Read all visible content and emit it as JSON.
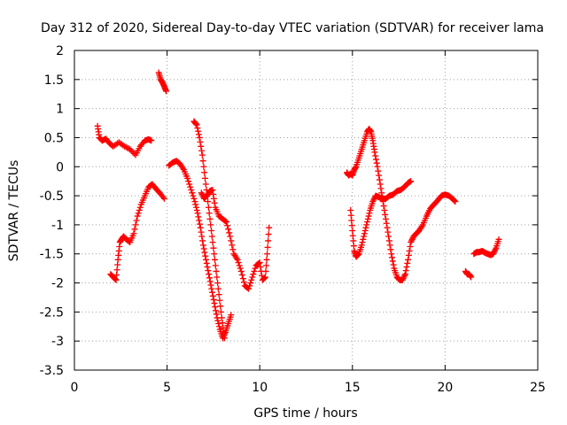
{
  "chart_data": {
    "type": "scatter",
    "title": "Day 312 of 2020, Sidereal Day-to-day VTEC variation (SDTVAR) for receiver lama",
    "xlabel": "GPS time / hours",
    "ylabel": "SDTVAR / TECUs",
    "xlim": [
      0,
      25
    ],
    "ylim": [
      -3.5,
      2
    ],
    "grid": true,
    "marker": "+",
    "xticks": [
      {
        "value": 0,
        "label": "0"
      },
      {
        "value": 5,
        "label": "5"
      },
      {
        "value": 10,
        "label": "10"
      },
      {
        "value": 15,
        "label": "15"
      },
      {
        "value": 20,
        "label": "20"
      },
      {
        "value": 25,
        "label": "25"
      }
    ],
    "yticks": [
      {
        "value": 2,
        "label": "2"
      },
      {
        "value": 1.5,
        "label": "1.5"
      },
      {
        "value": 1,
        "label": "1"
      },
      {
        "value": 0.5,
        "label": "0.5"
      },
      {
        "value": 0,
        "label": "0"
      },
      {
        "value": -0.5,
        "label": "-0.5"
      },
      {
        "value": -1,
        "label": "-1"
      },
      {
        "value": -1.5,
        "label": "-1.5"
      },
      {
        "value": -2,
        "label": "-2"
      },
      {
        "value": -2.5,
        "label": "-2.5"
      },
      {
        "value": -3,
        "label": "-3"
      },
      {
        "value": -3.5,
        "label": "-3.5"
      }
    ],
    "series": [
      {
        "name": "SDTVAR",
        "color": "#ff0000",
        "segments": [
          {
            "x": [
              1.25,
              1.35,
              1.5,
              1.7,
              1.9,
              2.1,
              2.4,
              2.7,
              3.0,
              3.3,
              3.55,
              3.8,
              4.0,
              4.15
            ],
            "y": [
              0.7,
              0.5,
              0.45,
              0.48,
              0.4,
              0.35,
              0.42,
              0.35,
              0.3,
              0.2,
              0.35,
              0.45,
              0.47,
              0.45
            ]
          },
          {
            "x": [
              4.55,
              4.65,
              4.75,
              4.85,
              4.95
            ],
            "y": [
              1.62,
              1.5,
              1.45,
              1.38,
              1.3
            ]
          },
          {
            "x": [
              1.95,
              2.1,
              2.25,
              2.35,
              2.45,
              2.55,
              2.65,
              2.8,
              3.0,
              3.2,
              3.4,
              3.6,
              3.8,
              4.0,
              4.2,
              4.4,
              4.6,
              4.85
            ],
            "y": [
              -1.85,
              -1.9,
              -1.95,
              -1.6,
              -1.3,
              -1.25,
              -1.2,
              -1.25,
              -1.3,
              -1.15,
              -0.85,
              -0.65,
              -0.5,
              -0.35,
              -0.3,
              -0.38,
              -0.45,
              -0.55
            ]
          },
          {
            "x": [
              5.1,
              5.3,
              5.5,
              5.7,
              5.9,
              6.1,
              6.3,
              6.5,
              6.65,
              6.8,
              6.95,
              7.1,
              7.25,
              7.4,
              7.55,
              7.7,
              7.85,
              8.0,
              8.15,
              8.3,
              8.45
            ],
            "y": [
              0.02,
              0.07,
              0.1,
              0.05,
              -0.05,
              -0.2,
              -0.4,
              -0.6,
              -0.8,
              -1.05,
              -1.35,
              -1.6,
              -1.85,
              -2.1,
              -2.35,
              -2.6,
              -2.8,
              -2.95,
              -2.85,
              -2.7,
              -2.55
            ]
          },
          {
            "x": [
              6.45,
              6.6,
              6.75,
              6.9,
              7.05,
              7.2,
              7.35,
              7.5,
              7.65,
              7.8,
              7.95,
              8.1
            ],
            "y": [
              0.78,
              0.72,
              0.5,
              0.2,
              -0.2,
              -0.6,
              -1.0,
              -1.4,
              -1.8,
              -2.2,
              -2.6,
              -2.95
            ]
          },
          {
            "x": [
              6.85,
              7.0,
              7.15,
              7.3,
              7.45,
              7.6,
              7.8,
              8.0,
              8.2,
              8.4,
              8.6,
              8.8,
              9.0,
              9.2,
              9.4,
              9.6,
              9.8,
              10.0,
              10.15,
              10.3,
              10.4,
              10.5
            ],
            "y": [
              -0.45,
              -0.55,
              -0.5,
              -0.42,
              -0.4,
              -0.7,
              -0.85,
              -0.9,
              -0.95,
              -1.2,
              -1.5,
              -1.6,
              -1.8,
              -2.05,
              -2.1,
              -1.9,
              -1.7,
              -1.65,
              -1.95,
              -1.9,
              -1.5,
              -1.05
            ]
          },
          {
            "x": [
              14.7,
              14.8,
              14.9,
              15.0,
              15.1,
              15.2,
              15.35,
              15.5,
              15.65,
              15.8,
              15.9,
              16.0,
              16.1,
              16.2,
              16.35,
              16.5,
              16.65,
              16.8,
              16.95,
              17.1,
              17.25,
              17.4,
              17.55,
              17.7,
              17.85,
              18.0,
              18.15,
              18.3,
              18.45,
              18.6,
              18.8,
              19.0,
              19.2,
              19.4,
              19.6,
              19.8,
              20.0,
              20.2,
              20.4,
              20.55
            ],
            "y": [
              -0.1,
              -0.15,
              -0.12,
              -0.15,
              -0.05,
              0.0,
              0.15,
              0.3,
              0.45,
              0.6,
              0.65,
              0.6,
              0.45,
              0.25,
              0.0,
              -0.3,
              -0.6,
              -0.9,
              -1.2,
              -1.5,
              -1.75,
              -1.9,
              -1.95,
              -1.95,
              -1.85,
              -1.6,
              -1.3,
              -1.2,
              -1.15,
              -1.1,
              -1.0,
              -0.85,
              -0.72,
              -0.65,
              -0.58,
              -0.5,
              -0.48,
              -0.5,
              -0.55,
              -0.6
            ]
          },
          {
            "x": [
              14.9,
              15.0,
              15.1,
              15.2,
              15.35,
              15.5,
              15.65,
              15.8,
              15.95,
              16.1,
              16.25,
              16.4,
              16.6,
              16.8,
              17.0,
              17.2,
              17.4,
              17.6,
              17.8,
              18.0,
              18.15
            ],
            "y": [
              -0.75,
              -1.1,
              -1.45,
              -1.55,
              -1.5,
              -1.35,
              -1.15,
              -0.95,
              -0.75,
              -0.6,
              -0.5,
              -0.52,
              -0.55,
              -0.55,
              -0.5,
              -0.48,
              -0.42,
              -0.4,
              -0.35,
              -0.28,
              -0.25
            ]
          },
          {
            "x": [
              21.1,
              21.2,
              21.3,
              21.4
            ],
            "y": [
              -1.8,
              -1.85,
              -1.85,
              -1.9
            ]
          },
          {
            "x": [
              21.55,
              21.7,
              21.85,
              22.0,
              22.15,
              22.3,
              22.45,
              22.6,
              22.75,
              22.9
            ],
            "y": [
              -1.5,
              -1.47,
              -1.47,
              -1.45,
              -1.48,
              -1.5,
              -1.52,
              -1.5,
              -1.4,
              -1.25
            ]
          }
        ]
      }
    ]
  }
}
